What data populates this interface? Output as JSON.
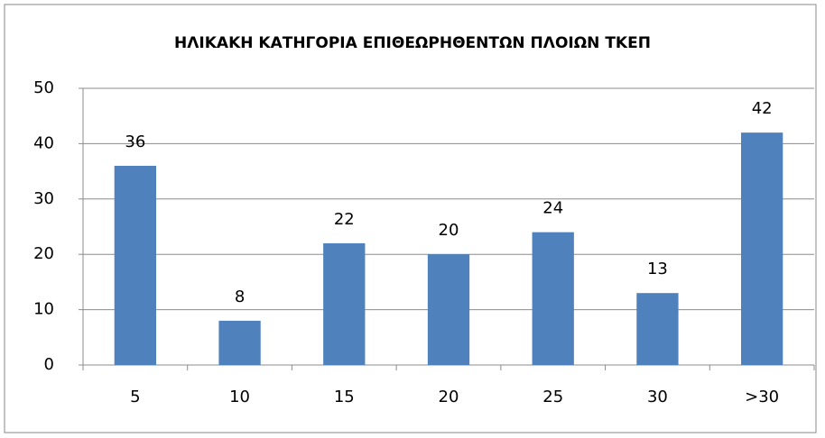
{
  "chart_data": {
    "type": "bar",
    "title": "ΗΛΙΚΑΚΗ ΚΑΤΗΓΟΡΙΑ ΕΠΙΘΕΩΡΗΘΕΝΤΩΝ ΠΛΟΙΩΝ ΤΚΕΠ",
    "categories": [
      "5",
      "10",
      "15",
      "20",
      "25",
      "30",
      ">30"
    ],
    "values": [
      36,
      8,
      22,
      20,
      24,
      13,
      42
    ],
    "color": "#4f81bd",
    "ylim": [
      0,
      50
    ],
    "yticks": [
      0,
      10,
      20,
      30,
      40,
      50
    ],
    "grid": true
  }
}
